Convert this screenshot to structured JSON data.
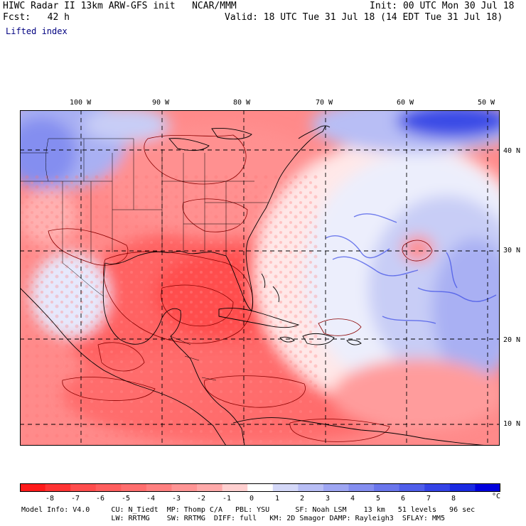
{
  "header": {
    "title": "HIWC Radar II 13km ARW-GFS init   NCAR/MMM",
    "init": "Init: 00 UTC Mon 30 Jul 18",
    "fcst": "Fcst:   42 h",
    "valid": "Valid: 18 UTC Tue 31 Jul 18 (14 EDT Tue 31 Jul 18)",
    "field": "Lifted index"
  },
  "map": {
    "lon_labels": [
      "100 W",
      "90 W",
      "80 W",
      "70 W",
      "60 W",
      "50 W"
    ],
    "lat_labels": [
      "40 N",
      "30 N",
      "20 N",
      "10 N"
    ]
  },
  "colorbar": {
    "labels": [
      "-8",
      "-7",
      "-6",
      "-5",
      "-4",
      "-3",
      "-2",
      "-1",
      "0",
      "1",
      "2",
      "3",
      "4",
      "5",
      "6",
      "7",
      "8"
    ],
    "unit": "°C",
    "colors": [
      "#ff1a1a",
      "#ff3333",
      "#ff4d4d",
      "#ff5e5e",
      "#ff6e6e",
      "#ff8080",
      "#ff9595",
      "#ffaaaa",
      "#ffd0d0",
      "#ffffff",
      "#d4d8f8",
      "#b8bef5",
      "#9ea6f3",
      "#848ef0",
      "#6a76ec",
      "#4f5eea",
      "#3443e6",
      "#1a2ae2",
      "#0000dd"
    ]
  },
  "footer": {
    "line1": "Model Info: V4.0     CU: N_Tiedt  MP: Thomp C/A   PBL: YSU      SF: Noah LSM    13 km   51 levels   96 sec",
    "line2": "                     LW: RRTMG    SW: RRTMG  DIFF: full   KM: 2D Smagor DAMP: Rayleigh3  SFLAY: MM5"
  }
}
